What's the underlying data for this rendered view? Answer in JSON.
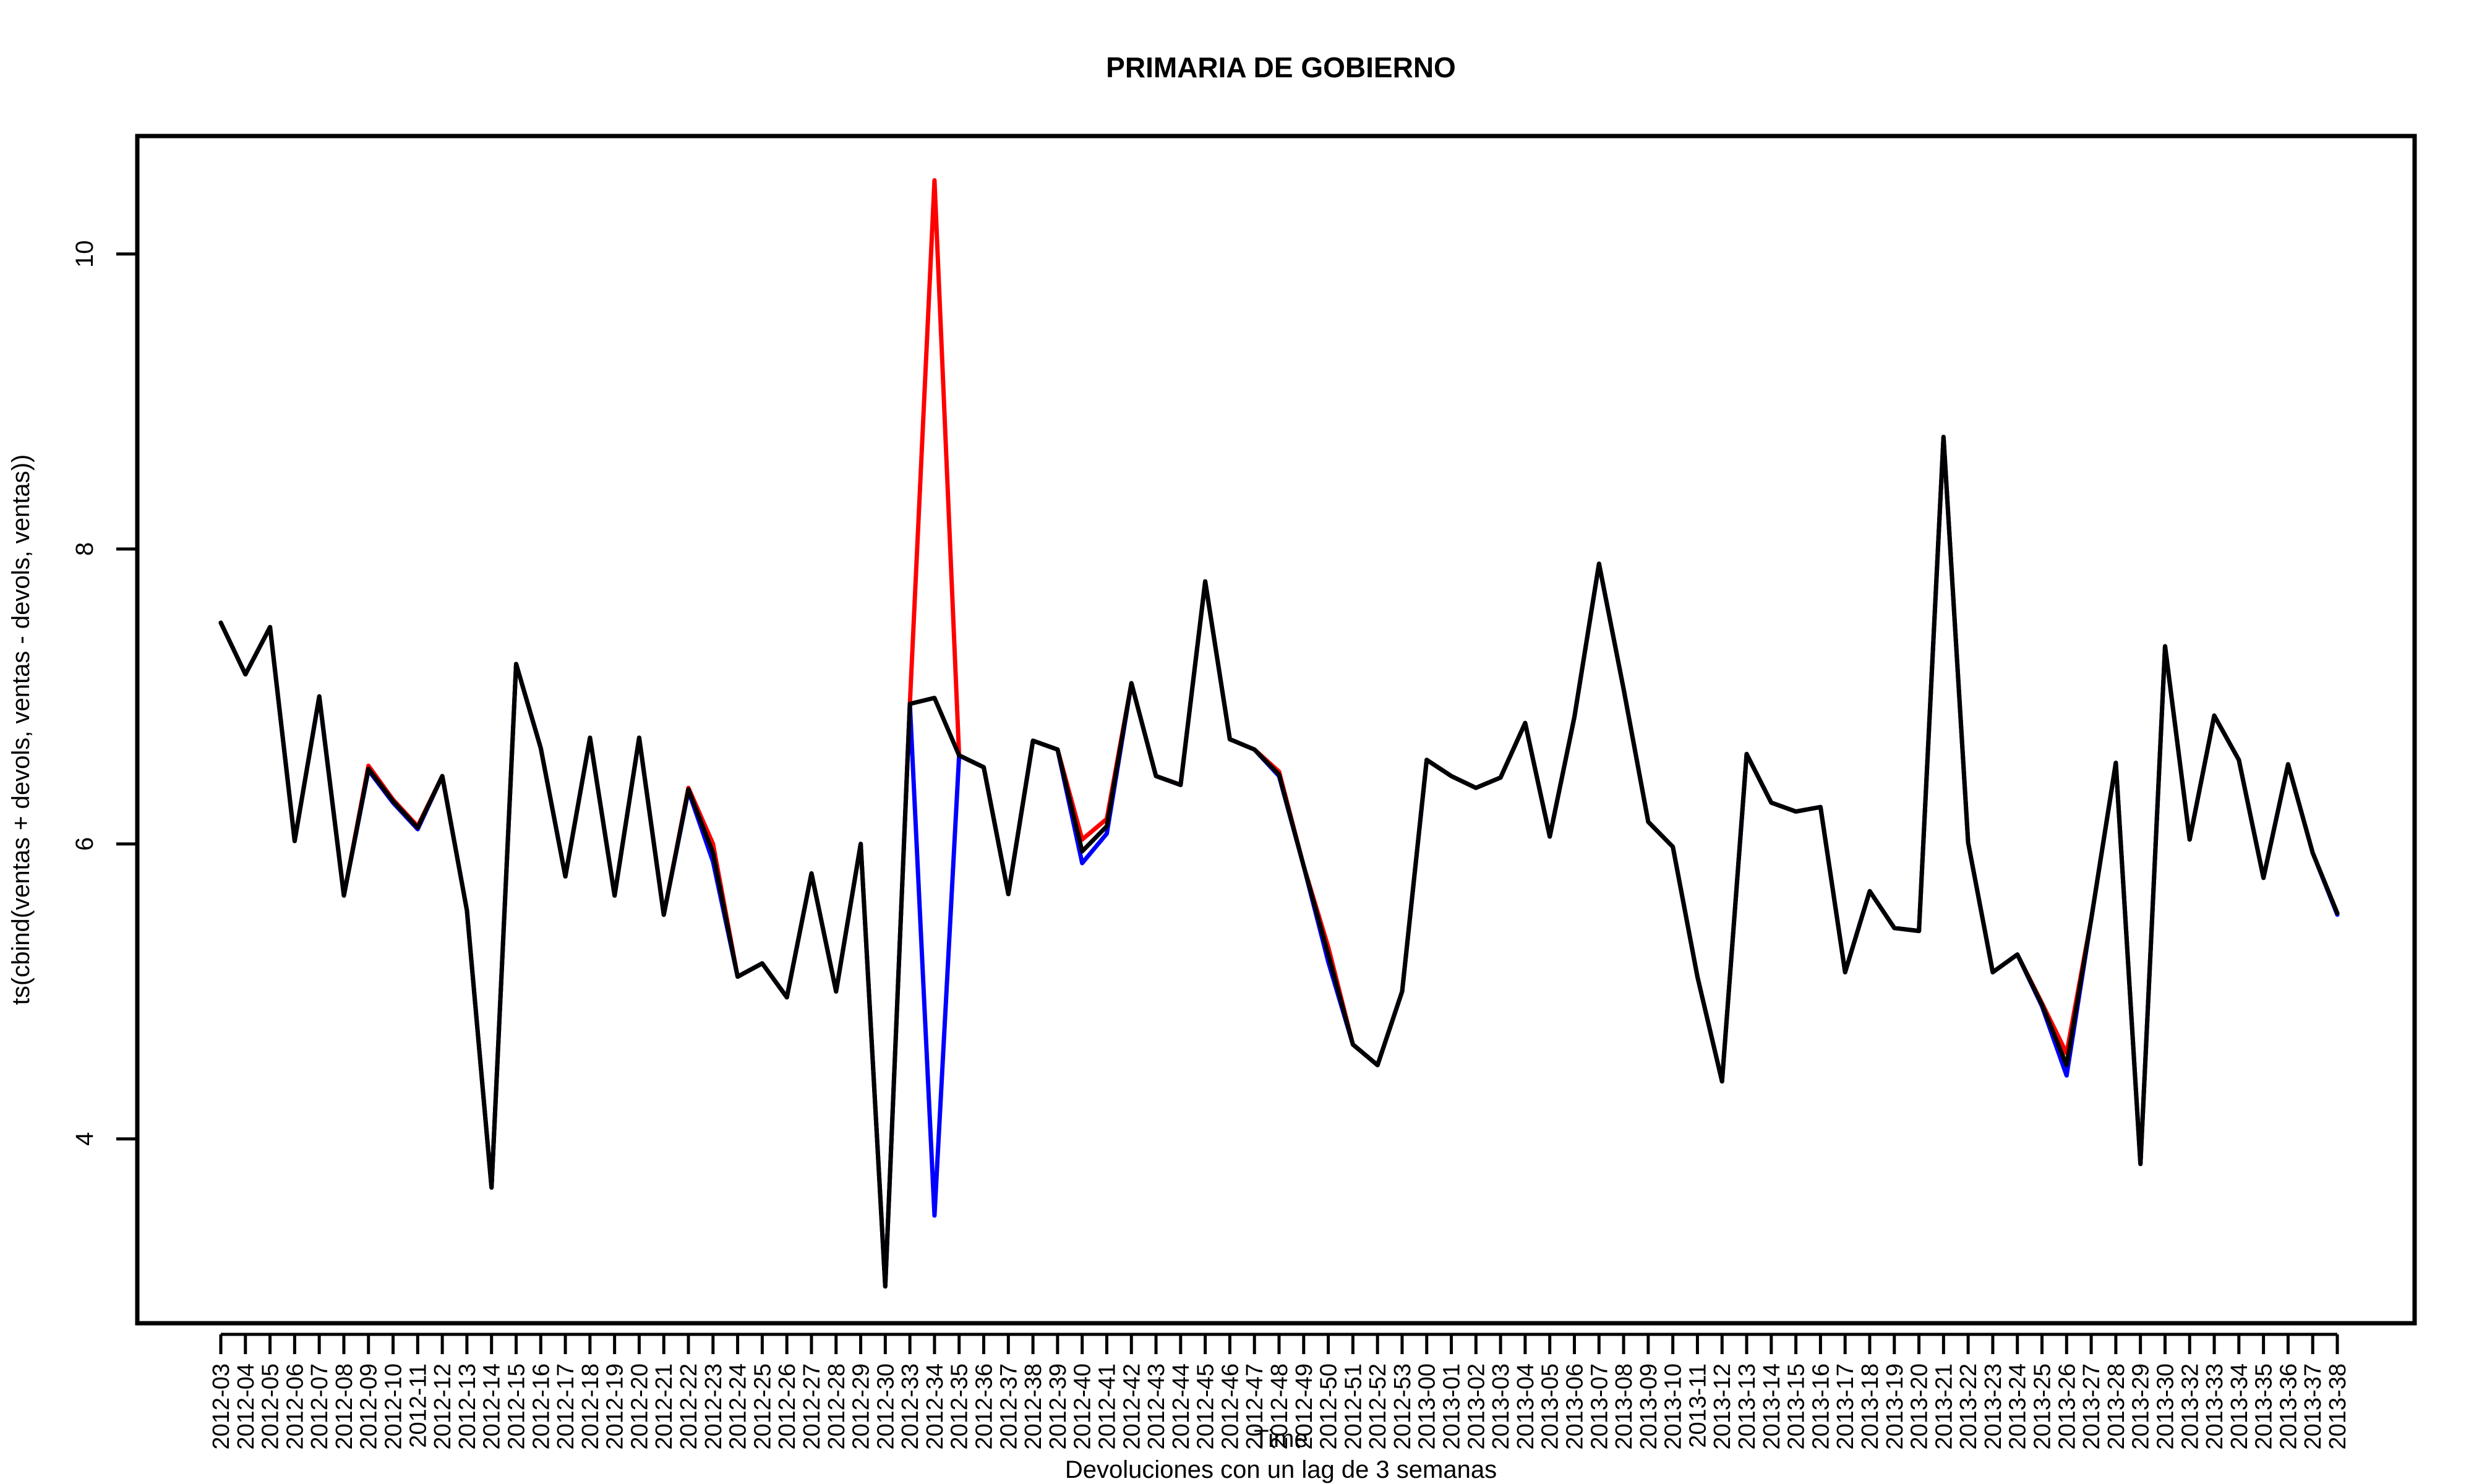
{
  "chart_data": {
    "type": "line",
    "title": "PRIMARIA DE GOBIERNO",
    "xlabel": "Time",
    "ylabel": "ts(cbind(ventas + devols, ventas - devols, ventas))",
    "caption": "Devoluciones con un lag de 3 semanas",
    "ylim": [
      2.75,
      10.8
    ],
    "yticks": [
      4,
      6,
      8,
      10
    ],
    "grid": false,
    "categories": [
      "2012-03",
      "2012-04",
      "2012-05",
      "2012-06",
      "2012-07",
      "2012-08",
      "2012-09",
      "2012-10",
      "2012-11",
      "2012-12",
      "2012-13",
      "2012-14",
      "2012-15",
      "2012-16",
      "2012-17",
      "2012-18",
      "2012-19",
      "2012-20",
      "2012-21",
      "2012-22",
      "2012-23",
      "2012-24",
      "2012-25",
      "2012-26",
      "2012-27",
      "2012-28",
      "2012-29",
      "2012-30",
      "2012-33",
      "2012-34",
      "2012-35",
      "2012-36",
      "2012-37",
      "2012-38",
      "2012-39",
      "2012-40",
      "2012-41",
      "2012-42",
      "2012-43",
      "2012-44",
      "2012-45",
      "2012-46",
      "2012-47",
      "2012-48",
      "2012-49",
      "2012-50",
      "2012-51",
      "2012-52",
      "2012-53",
      "2013-00",
      "2013-01",
      "2013-02",
      "2013-03",
      "2013-04",
      "2013-05",
      "2013-06",
      "2013-07",
      "2013-08",
      "2013-09",
      "2013-10",
      "2013-11",
      "2013-12",
      "2013-13",
      "2013-14",
      "2013-15",
      "2013-16",
      "2013-17",
      "2013-18",
      "2013-19",
      "2013-20",
      "2013-21",
      "2013-22",
      "2013-23",
      "2013-24",
      "2013-25",
      "2013-26",
      "2013-27",
      "2013-28",
      "2013-29",
      "2013-30",
      "2013-32",
      "2013-33",
      "2013-34",
      "2013-35",
      "2013-36",
      "2013-37",
      "2013-38"
    ],
    "xtick_labels": [
      "2012-03",
      "2012-04",
      "2012-05",
      "2012-06",
      "2012-07",
      "2012-08",
      "2012-09",
      "2012-10",
      "2012-11",
      "2012-12",
      "2012-13",
      "2012-14",
      "2012-15",
      "2012-16",
      "2012-17",
      "2012-18",
      "2012-19",
      "2012-20",
      "2012-21",
      "2012-22",
      "2012-23",
      "2012-24",
      "2012-25",
      "2012-26",
      "2012-27",
      "2012-28",
      "2012-29",
      "2012-30",
      "2012-33",
      "2012-34",
      "2012-35",
      "2012-36",
      "2012-37",
      "2012-38",
      "2012-39",
      "2012-40",
      "2012-41",
      "2012-42",
      "2012-43",
      "2012-44",
      "2012-45",
      "2012-46",
      "2012-47",
      "2012-48",
      "2012-49",
      "2012-50",
      "2012-51",
      "2012-52",
      "2012-53",
      "2013-00",
      "2013-01",
      "2013-02",
      "2013-03",
      "2013-04",
      "2013-05",
      "2013-06",
      "2013-07",
      "2013-08",
      "2013-09",
      "2013-10",
      "2013-11",
      "2013-12",
      "2013-13",
      "2013-14",
      "2013-15",
      "2013-16",
      "2013-17",
      "2013-18",
      "2013-19",
      "2013-20",
      "2013-21",
      "2013-22",
      "2013-23",
      "2013-24",
      "2013-25",
      "2013-26",
      "2013-27",
      "2013-28",
      "2013-29",
      "2013-30",
      "2013-32",
      "2013-33",
      "2013-34",
      "2013-35",
      "2013-36",
      "2013-37",
      "2013-38"
    ],
    "series": [
      {
        "color": "#ff0000",
        "values": [
          7.5,
          7.15,
          7.47,
          6.02,
          7.0,
          5.65,
          6.53,
          6.3,
          6.12,
          6.46,
          5.55,
          3.67,
          7.22,
          6.65,
          5.78,
          6.72,
          5.65,
          6.72,
          5.52,
          6.38,
          6.0,
          5.1,
          5.19,
          4.96,
          5.8,
          5.0,
          6.0,
          3.0,
          6.95,
          10.5,
          6.6,
          6.52,
          5.66,
          6.7,
          6.64,
          6.03,
          6.17,
          7.09,
          6.46,
          6.4,
          7.78,
          6.71,
          6.64,
          6.49,
          5.85,
          5.3,
          4.64,
          4.5,
          5.0,
          6.57,
          6.46,
          6.38,
          6.45,
          6.82,
          6.05,
          6.86,
          7.9,
          7.05,
          6.15,
          5.98,
          5.1,
          4.39,
          6.61,
          6.28,
          6.22,
          6.25,
          5.13,
          5.68,
          5.43,
          5.41,
          8.76,
          6.01,
          5.13,
          5.25,
          4.92,
          4.58,
          5.49,
          6.55,
          3.83,
          7.34,
          6.03,
          6.87,
          6.57,
          5.77,
          6.54,
          5.94,
          5.53
        ]
      },
      {
        "color": "#0000ff",
        "values": [
          7.5,
          7.15,
          7.47,
          6.02,
          7.0,
          5.65,
          6.5,
          6.28,
          6.1,
          6.46,
          5.55,
          3.67,
          7.22,
          6.65,
          5.78,
          6.72,
          5.65,
          6.72,
          5.52,
          6.36,
          5.88,
          5.1,
          5.19,
          4.96,
          5.8,
          5.0,
          6.0,
          3.0,
          6.95,
          3.48,
          6.6,
          6.52,
          5.66,
          6.7,
          6.64,
          5.87,
          6.07,
          7.09,
          6.46,
          6.4,
          7.78,
          6.71,
          6.64,
          6.46,
          5.85,
          5.2,
          4.64,
          4.5,
          5.0,
          6.57,
          6.46,
          6.38,
          6.45,
          6.82,
          6.05,
          6.86,
          7.9,
          7.05,
          6.15,
          5.98,
          5.1,
          4.39,
          6.61,
          6.28,
          6.22,
          6.25,
          5.13,
          5.68,
          5.43,
          5.41,
          8.76,
          6.01,
          5.13,
          5.25,
          4.9,
          4.43,
          5.49,
          6.55,
          3.83,
          7.34,
          6.03,
          6.87,
          6.57,
          5.77,
          6.54,
          5.94,
          5.52
        ]
      },
      {
        "color": "#000000",
        "values": [
          7.5,
          7.15,
          7.47,
          6.02,
          7.0,
          5.65,
          6.51,
          6.29,
          6.11,
          6.46,
          5.55,
          3.67,
          7.22,
          6.65,
          5.78,
          6.72,
          5.65,
          6.72,
          5.52,
          6.37,
          5.94,
          5.1,
          5.19,
          4.96,
          5.8,
          5.0,
          6.0,
          3.0,
          6.95,
          6.99,
          6.6,
          6.52,
          5.66,
          6.7,
          6.64,
          5.95,
          6.12,
          7.09,
          6.46,
          6.4,
          7.78,
          6.71,
          6.64,
          6.47,
          5.85,
          5.25,
          4.64,
          4.5,
          5.0,
          6.57,
          6.46,
          6.38,
          6.45,
          6.82,
          6.05,
          6.86,
          7.9,
          7.05,
          6.15,
          5.98,
          5.1,
          4.39,
          6.61,
          6.28,
          6.22,
          6.25,
          5.13,
          5.68,
          5.43,
          5.41,
          8.76,
          6.01,
          5.13,
          5.25,
          4.91,
          4.5,
          5.49,
          6.55,
          3.83,
          7.34,
          6.03,
          6.87,
          6.57,
          5.77,
          6.54,
          5.94,
          5.53
        ]
      }
    ]
  }
}
